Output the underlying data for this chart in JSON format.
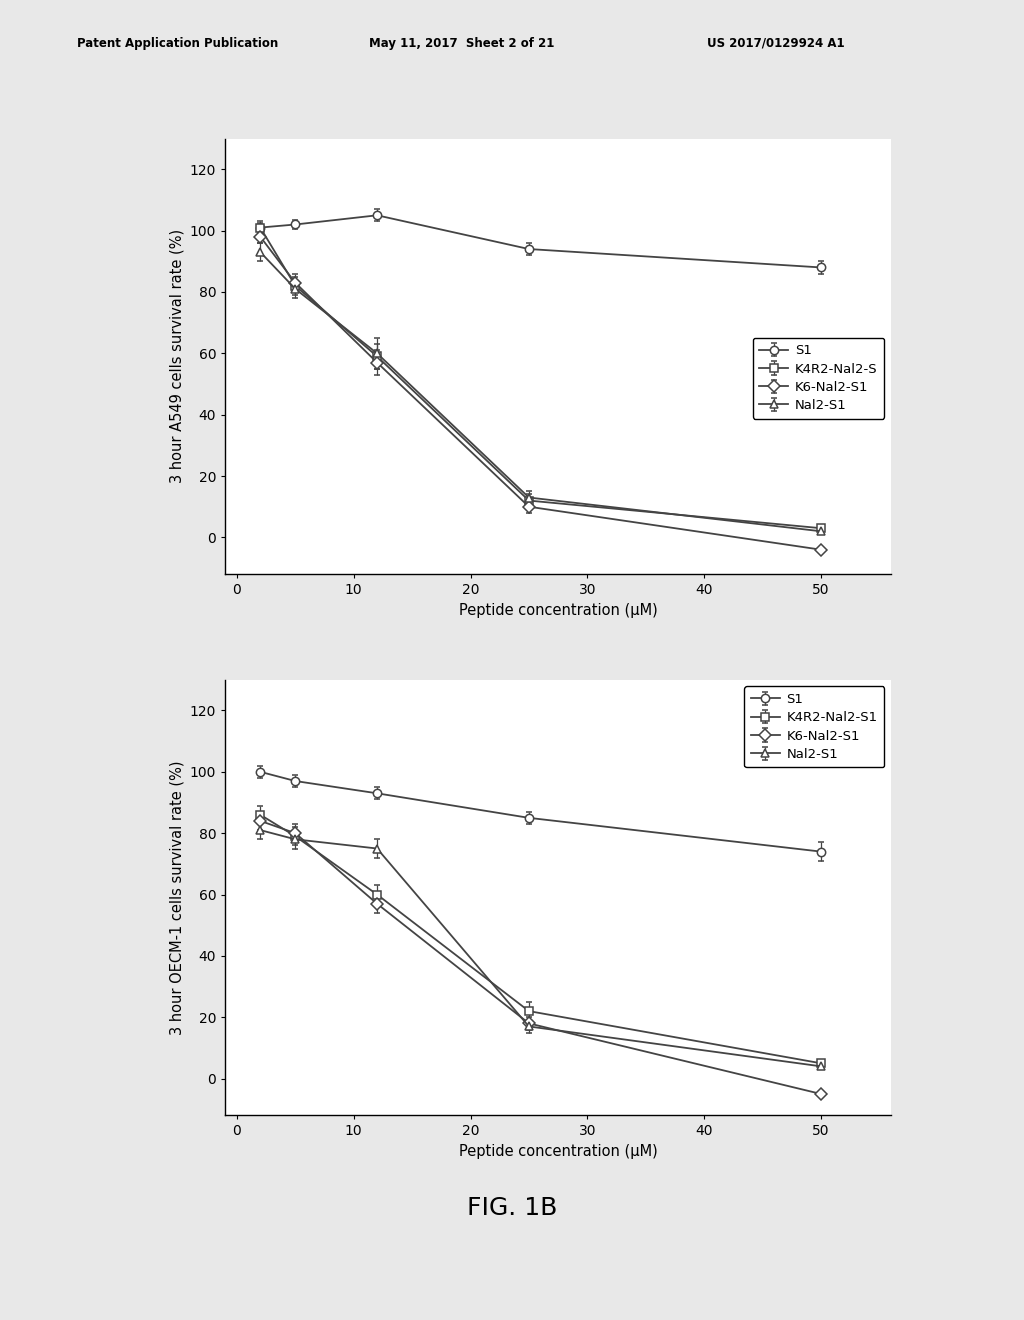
{
  "header_left": "Patent Application Publication",
  "header_mid": "May 11, 2017  Sheet 2 of 21",
  "header_right": "US 2017/0129924 A1",
  "figure_label": "FIG. 1B",
  "x_values": [
    2,
    5,
    12,
    25,
    50
  ],
  "plot1": {
    "ylabel": "3 hour A549 cells survival rate (%)",
    "xlabel": "Peptide concentration (μM)",
    "ylim": [
      -12,
      130
    ],
    "yticks": [
      0,
      20,
      40,
      60,
      80,
      100,
      120
    ],
    "xticks": [
      0,
      10,
      20,
      30,
      40,
      50
    ],
    "xlim": [
      -1,
      56
    ],
    "series": [
      {
        "key": "S1",
        "y": [
          101,
          102,
          105,
          94,
          88
        ],
        "yerr": [
          1.5,
          1.5,
          2,
          2,
          2
        ],
        "marker": "o",
        "label": "S1"
      },
      {
        "key": "K4R2-Nal2-S",
        "y": [
          101,
          82,
          59,
          12,
          3
        ],
        "yerr": [
          2,
          3,
          4,
          2,
          1
        ],
        "marker": "s",
        "label": "K4R2-Nal2-S"
      },
      {
        "key": "K6-Nal2-S1",
        "y": [
          98,
          83,
          57,
          10,
          -4
        ],
        "yerr": [
          2,
          3,
          4,
          2,
          1
        ],
        "marker": "D",
        "label": "K6-Nal2-S1"
      },
      {
        "key": "Nal2-S1",
        "y": [
          93,
          81,
          60,
          13,
          2
        ],
        "yerr": [
          3,
          3,
          5,
          2,
          1
        ],
        "marker": "^",
        "label": "Nal2-S1"
      }
    ]
  },
  "plot2": {
    "ylabel": "3 hour OECM-1 cells survival rate (%)",
    "xlabel": "Peptide concentration (μM)",
    "ylim": [
      -12,
      130
    ],
    "yticks": [
      0,
      20,
      40,
      60,
      80,
      100,
      120
    ],
    "xticks": [
      0,
      10,
      20,
      30,
      40,
      50
    ],
    "xlim": [
      -1,
      56
    ],
    "series": [
      {
        "key": "S1",
        "y": [
          100,
          97,
          93,
          85,
          74
        ],
        "yerr": [
          2,
          2,
          2,
          2,
          3
        ],
        "marker": "o",
        "label": "S1"
      },
      {
        "key": "K4R2-Nal2-S1",
        "y": [
          86,
          79,
          60,
          22,
          5
        ],
        "yerr": [
          3,
          3,
          3,
          3,
          1
        ],
        "marker": "s",
        "label": "K4R2-Nal2-S1"
      },
      {
        "key": "K6-Nal2-S1",
        "y": [
          84,
          80,
          57,
          18,
          -5
        ],
        "yerr": [
          3,
          3,
          3,
          2,
          1
        ],
        "marker": "D",
        "label": "K6-Nal2-S1"
      },
      {
        "key": "Nal2-S1",
        "y": [
          81,
          78,
          75,
          17,
          4
        ],
        "yerr": [
          3,
          3,
          3,
          2,
          1
        ],
        "marker": "^",
        "label": "Nal2-S1"
      }
    ]
  },
  "line_color": "#444444",
  "marker_size": 6,
  "linewidth": 1.3,
  "axis_fontsize": 10.5,
  "tick_fontsize": 10,
  "legend_fontsize": 9.5,
  "bg_color": "#e8e8e8"
}
